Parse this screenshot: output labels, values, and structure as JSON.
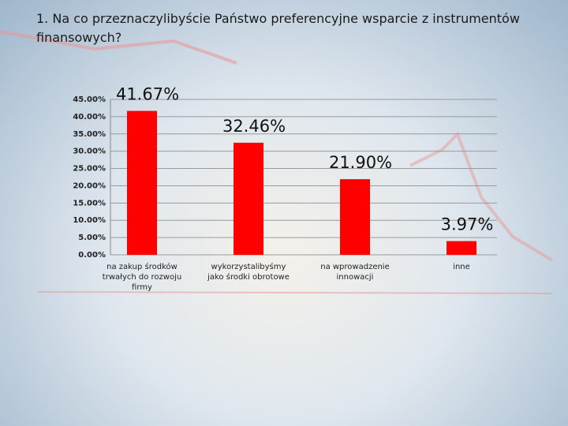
{
  "chart_data": {
    "type": "bar",
    "title": "1. Na co przeznaczylibyście Państwo preferencyjne wsparcie z instrumentów finansowych?",
    "categories": [
      "na zakup środków trwałych do rozwoju firmy",
      "wykorzystalibyśmy jako środki obrotowe",
      "na wprowadzenie innowacji",
      "inne"
    ],
    "values": [
      41.67,
      32.46,
      21.9,
      3.97
    ],
    "value_labels": [
      "41.67%",
      "32.46%",
      "21.90%",
      "3.97%"
    ],
    "color": "#ff0000",
    "ylim": [
      0,
      45
    ],
    "yticks": [
      {
        "value": 0,
        "label": "0.00%"
      },
      {
        "value": 5,
        "label": "5.00%"
      },
      {
        "value": 10,
        "label": "10.00%"
      },
      {
        "value": 15,
        "label": "15.00%"
      },
      {
        "value": 20,
        "label": "20.00%"
      },
      {
        "value": 25,
        "label": "25.00%"
      },
      {
        "value": 30,
        "label": "30.00%"
      },
      {
        "value": 35,
        "label": "35.00%"
      },
      {
        "value": 40,
        "label": "40.00%"
      },
      {
        "value": 45,
        "label": "45.00%"
      }
    ],
    "grid": true
  }
}
